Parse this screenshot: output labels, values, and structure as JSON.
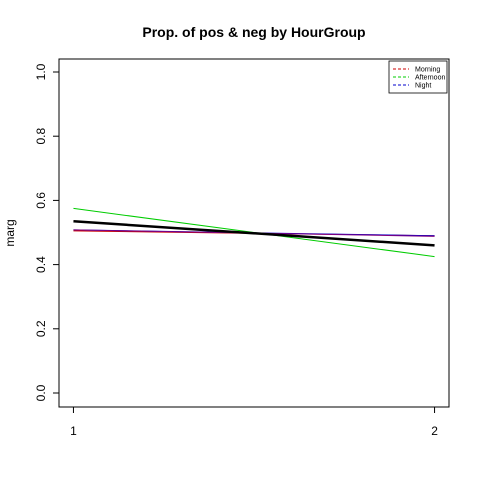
{
  "chart_data": {
    "type": "line",
    "title": "Prop. of pos & neg by HourGroup",
    "xlabel": "",
    "ylabel": "marg",
    "x": [
      1,
      2
    ],
    "x_tick_labels": [
      "1",
      "2"
    ],
    "xlim": [
      0.96,
      2.04
    ],
    "ylim": [
      0,
      1
    ],
    "y_ticks": [
      0.0,
      0.2,
      0.4,
      0.6,
      0.8,
      1.0
    ],
    "y_tick_labels": [
      "0.0",
      "0.2",
      "0.4",
      "0.6",
      "0.8",
      "1.0"
    ],
    "grid": false,
    "legend_position": "top-right",
    "series": [
      {
        "name": "Morning",
        "values": [
          0.505,
          0.49
        ],
        "color": "#cc0000",
        "legend_dash": true
      },
      {
        "name": "Afternoon",
        "values": [
          0.575,
          0.425
        ],
        "color": "#00cc00",
        "legend_dash": true
      },
      {
        "name": "Night",
        "values": [
          0.508,
          0.49
        ],
        "color": "#0000cc",
        "legend_dash": true
      },
      {
        "values": [
          0.508,
          0.488
        ],
        "color": "#800080",
        "in_legend": false
      },
      {
        "values": [
          0.535,
          0.46
        ],
        "color": "#000000",
        "in_legend": false,
        "thick": true
      }
    ]
  }
}
